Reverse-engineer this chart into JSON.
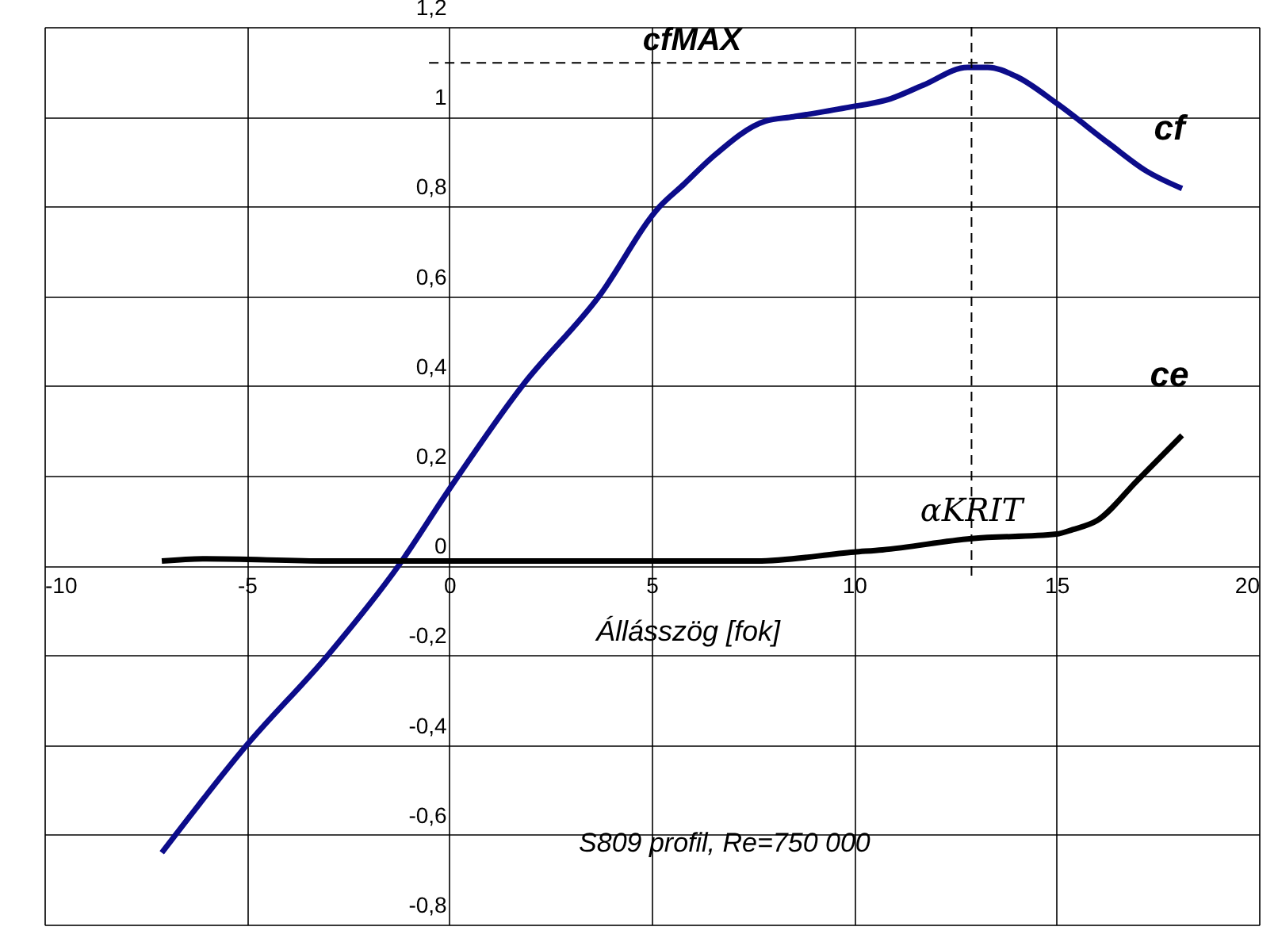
{
  "chart_data": {
    "type": "line",
    "xlabel": "Állásszög [fok]",
    "xlim": [
      -10,
      20
    ],
    "xticks": [
      -10,
      -5,
      0,
      5,
      10,
      15,
      20
    ],
    "ylim": [
      -0.8,
      1.2
    ],
    "yticks": [
      {
        "value": -0.8,
        "label": "-0,8"
      },
      {
        "value": -0.6,
        "label": "-0,6"
      },
      {
        "value": -0.4,
        "label": "-0,4"
      },
      {
        "value": -0.2,
        "label": "-0,2"
      },
      0,
      {
        "value": 0.2,
        "label": "0,2"
      },
      {
        "value": 0.4,
        "label": "0,4"
      },
      {
        "value": 0.6,
        "label": "0,6"
      },
      {
        "value": 0.8,
        "label": "0,8"
      },
      1,
      {
        "value": 1.2,
        "label": "1,2"
      }
    ],
    "grid": true,
    "line_style": "solid",
    "marker": "none",
    "series": [
      {
        "name": "cf",
        "color": "#0c0c8a",
        "x": [
          -7.1,
          -5,
          -3,
          -1.25,
          0,
          1.8,
          3.7,
          5.2,
          5.8,
          6.5,
          7.8,
          8.5,
          9.8,
          10.9,
          11.7,
          12.8,
          13.3,
          14.0,
          15.0,
          16.3,
          17.2,
          18.1
        ],
        "values": [
          -0.64,
          -0.4,
          -0.2,
          0.0,
          0.17,
          0.4,
          0.6,
          0.8,
          0.85,
          0.91,
          0.99,
          1.0,
          1.02,
          1.04,
          1.07,
          1.11,
          1.11,
          1.09,
          1.03,
          0.94,
          0.88,
          0.84
        ]
      },
      {
        "name": "ce",
        "color": "#000000",
        "x": [
          -7.1,
          -6,
          -3,
          0,
          3,
          7.6,
          10.0,
          10.7,
          12.9,
          15.0,
          15.4,
          16.0,
          17.0,
          18.1
        ],
        "values": [
          0.01,
          0.015,
          0.01,
          0.01,
          0.01,
          0.01,
          0.03,
          0.035,
          0.06,
          0.07,
          0.08,
          0.1,
          0.19,
          0.29
        ]
      }
    ],
    "ref_lines": [
      {
        "axis": "y",
        "value": 1.12,
        "label": "cfMAX",
        "line_style": "dashed",
        "color": "#000000"
      },
      {
        "axis": "x",
        "value": 12.9,
        "label": "αKRIT",
        "line_style": "dashed",
        "color": "#000000"
      }
    ],
    "annotations": [
      "S809 profil, Re=750 000"
    ]
  }
}
